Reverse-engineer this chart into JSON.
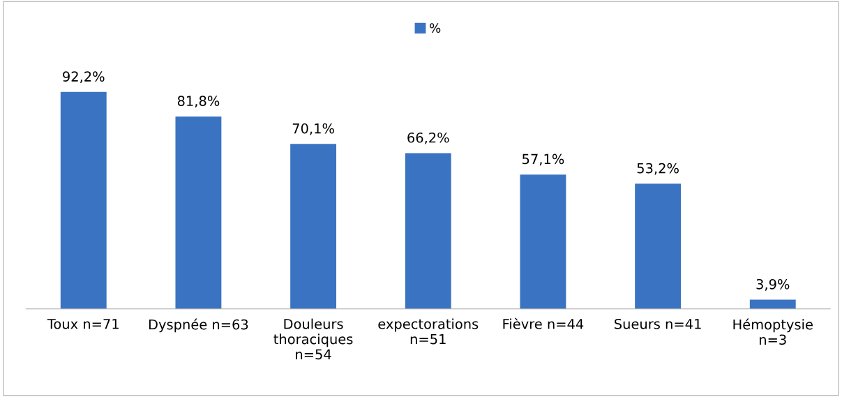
{
  "chart_data": {
    "type": "bar",
    "categories": [
      "Toux n=71",
      "Dyspnée n=63",
      "Douleurs\nthoraciques\nn=54",
      "expectorations\nn=51",
      "Fièvre n=44",
      "Sueurs n=41",
      "Hémoptysie\nn=3"
    ],
    "series": [
      {
        "name": "%",
        "color": "#3a73c2",
        "values": [
          92.2,
          81.8,
          70.1,
          66.2,
          57.1,
          53.2,
          3.9
        ],
        "value_labels": [
          "92,2%",
          "81,8%",
          "70,1%",
          "66,2%",
          "57,1%",
          "53,2%",
          "3,9%"
        ]
      }
    ],
    "legend": "top",
    "grid": false
  }
}
